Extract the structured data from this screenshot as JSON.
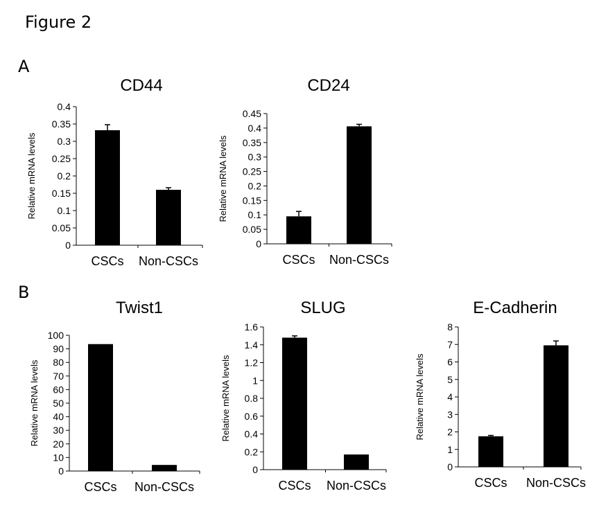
{
  "figure": {
    "title": "Figure 2"
  },
  "panels": [
    {
      "letter": "A"
    },
    {
      "letter": "B"
    }
  ],
  "chart_data": [
    {
      "panel": "A",
      "type": "bar",
      "title": "CD44",
      "categories": [
        "CSCs",
        "Non-CSCs"
      ],
      "values": [
        0.332,
        0.16
      ],
      "errors": [
        0.016,
        0.006
      ],
      "ylabel": "Relative  mRNA  levels",
      "ylim": [
        0,
        0.4
      ],
      "yticks": [
        0,
        0.05,
        0.1,
        0.15,
        0.2,
        0.25,
        0.3,
        0.35,
        0.4
      ],
      "yticklabels": [
        "0",
        "0.05",
        "0.1",
        "0.15",
        "0.2",
        "0.25",
        "0.3",
        "0.35",
        "0.4"
      ]
    },
    {
      "panel": "A",
      "type": "bar",
      "title": "CD24",
      "categories": [
        "CSCs",
        "Non-CSCs"
      ],
      "values": [
        0.095,
        0.406
      ],
      "errors": [
        0.017,
        0.007
      ],
      "ylabel": "Relative  mRNA  levels",
      "ylim": [
        0,
        0.45
      ],
      "yticks": [
        0,
        0.05,
        0.1,
        0.15,
        0.2,
        0.25,
        0.3,
        0.35,
        0.4,
        0.45
      ],
      "yticklabels": [
        "0",
        "0.05",
        "0.1",
        "0.15",
        "0.2",
        "0.25",
        "0.3",
        "0.35",
        "0.4",
        "0.45"
      ]
    },
    {
      "panel": "B",
      "type": "bar",
      "title": "Twist1",
      "categories": [
        "CSCs",
        "Non-CSCs"
      ],
      "values": [
        93.5,
        4.5
      ],
      "errors": [
        0,
        0
      ],
      "ylabel": "Relative  mRNA  levels",
      "ylim": [
        0,
        100
      ],
      "yticks": [
        0,
        10,
        20,
        30,
        40,
        50,
        60,
        70,
        80,
        90,
        100
      ],
      "yticklabels": [
        "0",
        "10",
        "20",
        "30",
        "40",
        "50",
        "60",
        "70",
        "80",
        "90",
        "100"
      ]
    },
    {
      "panel": "B",
      "type": "bar",
      "title": "SLUG",
      "categories": [
        "CSCs",
        "Non-CSCs"
      ],
      "values": [
        1.48,
        0.17
      ],
      "errors": [
        0.02,
        0
      ],
      "ylabel": "Relative  mRNA  levels",
      "ylim": [
        0,
        1.6
      ],
      "yticks": [
        0,
        0.2,
        0.4,
        0.6,
        0.8,
        1,
        1.2,
        1.4,
        1.6
      ],
      "yticklabels": [
        "0",
        "0.2",
        "0.4",
        "0.6",
        "0.8",
        "1",
        "1.2",
        "1.4",
        "1.6"
      ]
    },
    {
      "panel": "B",
      "type": "bar",
      "title": "E-Cadherin",
      "categories": [
        "CSCs",
        "Non-CSCs"
      ],
      "values": [
        1.75,
        6.95
      ],
      "errors": [
        0.05,
        0.25
      ],
      "ylabel": "Relative  mRNA  levels",
      "ylim": [
        0,
        8
      ],
      "yticks": [
        0,
        1,
        2,
        3,
        4,
        5,
        6,
        7,
        8
      ],
      "yticklabels": [
        "0",
        "1",
        "2",
        "3",
        "4",
        "5",
        "6",
        "7",
        "8"
      ]
    }
  ]
}
